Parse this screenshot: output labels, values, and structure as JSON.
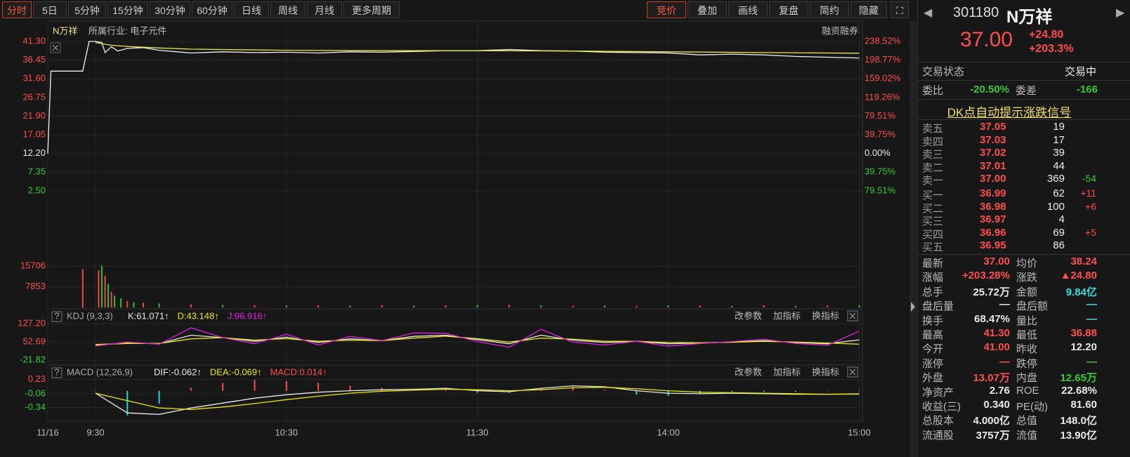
{
  "toolbar": {
    "periods": [
      "分时",
      "5日",
      "5分钟",
      "15分钟",
      "30分钟",
      "60分钟",
      "日线",
      "周线",
      "月线",
      "更多周期"
    ],
    "tools": [
      "竞价",
      "叠加",
      "画线",
      "复盘",
      "简约",
      "隐藏"
    ]
  },
  "chart": {
    "header": {
      "name": "N万祥",
      "industry": "所属行业: 电子元件",
      "margin": "融资融券"
    },
    "xlim": [
      -15,
      241
    ],
    "xticks": [
      {
        "value": -15,
        "label": "11/16"
      },
      {
        "value": 0,
        "label": "9:30"
      },
      {
        "value": 60,
        "label": "10:30"
      },
      {
        "value": 120,
        "label": "11:30"
      },
      {
        "value": 180,
        "label": "14:00"
      },
      {
        "value": 240,
        "label": "15:00"
      }
    ],
    "price": {
      "type": "line",
      "ylim": [
        -14.46,
        42.94
      ],
      "yticks": [
        {
          "value": 41.3,
          "label": "41.30"
        },
        36.45,
        {
          "value": 31.6,
          "label": "31.60"
        },
        26.75,
        {
          "value": 21.9,
          "label": "21.90"
        },
        17.05,
        {
          "value": 12.2,
          "label": "12.20"
        },
        7.35,
        {
          "value": 2.5,
          "label": "2.50"
        }
      ],
      "y2lim": [
        -218.52,
        251.97
      ],
      "y2ticks": [
        {
          "value": 238.52,
          "label": "238.52%"
        },
        {
          "value": 198.77,
          "label": "198.77%"
        },
        {
          "value": 159.02,
          "label": "159.02%"
        },
        {
          "value": 119.26,
          "label": "119.26%"
        },
        {
          "value": 79.51,
          "label": "79.51%"
        },
        {
          "value": 39.75,
          "label": "39.75%"
        },
        {
          "value": 0,
          "label": "0.00%"
        },
        {
          "value": -39.75,
          "label": "39.75%"
        },
        {
          "value": -79.51,
          "label": "79.51%"
        }
      ],
      "series": [
        {
          "color": "#f0f0f0",
          "x": [
            -15,
            -14,
            -4,
            -2,
            0,
            2,
            3,
            5,
            7,
            10,
            15,
            20,
            30,
            40,
            50,
            60,
            70,
            80,
            90,
            100,
            110,
            120,
            130,
            140,
            150,
            160,
            170,
            180,
            190,
            200,
            210,
            220,
            230,
            240
          ],
          "values": [
            12.2,
            33.6,
            33.6,
            41.3,
            41.3,
            41.0,
            38.4,
            39.9,
            38.8,
            39.5,
            39.7,
            39.0,
            38.3,
            38.6,
            38.4,
            38.5,
            38.3,
            38.6,
            38.5,
            38.7,
            38.9,
            38.9,
            39.2,
            38.9,
            38.8,
            38.5,
            38.4,
            38.3,
            37.8,
            38.0,
            37.8,
            37.4,
            37.2,
            37.0
          ]
        },
        {
          "color": "#e8e84a",
          "x": [
            0,
            5,
            10,
            20,
            30,
            60,
            90,
            120,
            150,
            180,
            210,
            240
          ],
          "values": [
            41.0,
            40.3,
            40.0,
            39.6,
            39.3,
            39.0,
            38.9,
            38.9,
            38.8,
            38.6,
            38.4,
            38.24
          ]
        }
      ]
    },
    "volume": {
      "type": "bar",
      "ylim": [
        0,
        18062
      ],
      "yticks": [
        15706,
        7853
      ],
      "x": [
        -4,
        1,
        2,
        3,
        4,
        5,
        6,
        8,
        10,
        12,
        15,
        20,
        30,
        40,
        50,
        60,
        70,
        80,
        90,
        100,
        110,
        120,
        130,
        140,
        150,
        160,
        170,
        180,
        190,
        200,
        210,
        220,
        230,
        240
      ],
      "values": [
        14500,
        14000,
        15706,
        12000,
        9000,
        6000,
        4500,
        3500,
        2500,
        2000,
        1800,
        1500,
        1200,
        1000,
        900,
        800,
        800,
        700,
        900,
        700,
        800,
        900,
        1000,
        800,
        700,
        700,
        600,
        800,
        700,
        600,
        800,
        600,
        700,
        900
      ],
      "colors": [
        "#ff4040",
        "#ff4040",
        "#30c030",
        "#ff4040",
        "#30c030",
        "#ff4040",
        "#30c030",
        "#30c030",
        "#ff4040",
        "#30c030",
        "#ff4040",
        "#30c030",
        "#ff4040",
        "#30c030",
        "#ff4040",
        "#30c030",
        "#ff4040",
        "#30c030",
        "#ff4040",
        "#30c030",
        "#ff4040",
        "#30c030",
        "#ff4040",
        "#30c030",
        "#ff4040",
        "#30c030",
        "#ff4040",
        "#30c030",
        "#ff4040",
        "#30c030",
        "#ff4040",
        "#30c030",
        "#ff4040",
        "#30c030"
      ]
    },
    "kdj": {
      "type": "line",
      "title": "KDJ (9,3,3)",
      "readouts": [
        "K:61.071↑",
        "D:43.148↑",
        "J:96.916↑"
      ],
      "buttons": [
        "改参数",
        "加指标",
        "换指标"
      ],
      "ylim": [
        -36.1,
        144.4
      ],
      "yticks": [
        {
          "value": 127.2,
          "label": "127.20"
        },
        52.69,
        -21.82
      ],
      "x": [
        0,
        10,
        20,
        30,
        40,
        50,
        60,
        70,
        80,
        90,
        100,
        110,
        120,
        130,
        140,
        150,
        160,
        170,
        180,
        190,
        200,
        210,
        220,
        230,
        240
      ],
      "series": [
        {
          "color": "#e8e8e8",
          "values": [
            40,
            48,
            45,
            80,
            70,
            55,
            72,
            50,
            65,
            58,
            75,
            80,
            62,
            45,
            80,
            60,
            50,
            55,
            45,
            48,
            52,
            58,
            50,
            45,
            61.07
          ]
        },
        {
          "color": "#e8e800",
          "values": [
            42,
            46,
            46,
            65,
            70,
            60,
            66,
            55,
            60,
            58,
            68,
            76,
            66,
            52,
            68,
            64,
            55,
            55,
            50,
            49,
            51,
            55,
            52,
            48,
            43.15
          ]
        },
        {
          "color": "#e020e0",
          "values": [
            36,
            52,
            43,
            110,
            70,
            45,
            84,
            40,
            75,
            58,
            89,
            88,
            54,
            31,
            104,
            52,
            40,
            55,
            35,
            46,
            54,
            64,
            46,
            39,
            96.92
          ]
        }
      ]
    },
    "macd": {
      "type": "line",
      "title": "MACD (12,26,9)",
      "readouts": [
        "DIF:-0.062↑",
        "DEA:-0.069↑",
        "MACD:0.014↑"
      ],
      "buttons": [
        "改参数",
        "加指标",
        "换指标"
      ],
      "ylim": [
        -0.59,
        0.48
      ],
      "yticks": [
        0.23,
        -0.06,
        -0.34
      ],
      "x": [
        0,
        10,
        20,
        30,
        40,
        50,
        60,
        70,
        80,
        90,
        100,
        110,
        120,
        130,
        140,
        150,
        160,
        170,
        180,
        190,
        200,
        210,
        220,
        230,
        240
      ],
      "series": [
        {
          "color": "#e8e8e8",
          "values": [
            -0.05,
            -0.45,
            -0.48,
            -0.35,
            -0.25,
            -0.15,
            -0.08,
            -0.03,
            0,
            0.02,
            0.03,
            0.05,
            0,
            -0.02,
            0.05,
            0.1,
            0.08,
            0,
            -0.05,
            -0.06,
            -0.05,
            -0.06,
            -0.07,
            -0.07,
            -0.062
          ]
        },
        {
          "color": "#e8e800",
          "values": [
            -0.05,
            -0.2,
            -0.35,
            -0.38,
            -0.33,
            -0.26,
            -0.18,
            -0.11,
            -0.05,
            -0.01,
            0.01,
            0.03,
            0.02,
            0,
            0.02,
            0.06,
            0.07,
            0.04,
            0,
            -0.03,
            -0.04,
            -0.05,
            -0.06,
            -0.07,
            -0.069
          ]
        }
      ],
      "bars": [
        0,
        -0.5,
        -0.26,
        0.06,
        0.16,
        0.22,
        0.2,
        0.16,
        0.1,
        0.06,
        0.04,
        0.04,
        -0.04,
        -0.04,
        0.06,
        0.08,
        0.02,
        -0.08,
        -0.1,
        -0.06,
        -0.02,
        -0.02,
        -0.02,
        0,
        0.014
      ]
    }
  },
  "quote": {
    "code": "301180",
    "name": "N万祥",
    "price": "37.00",
    "change": "+24.80",
    "pct": "+203.3%",
    "status_label": "交易状态",
    "status": "交易中",
    "ratio_label": "委比",
    "ratio": "-20.50%",
    "diff_label": "委差",
    "diff": "-166",
    "signal": "DK点自动提示涨跌信号",
    "asks": [
      [
        "卖五",
        "37.05",
        "19",
        ""
      ],
      [
        "卖四",
        "37.03",
        "17",
        ""
      ],
      [
        "卖三",
        "37.02",
        "39",
        ""
      ],
      [
        "卖二",
        "37.01",
        "44",
        ""
      ],
      [
        "卖一",
        "37.00",
        "369",
        "-54"
      ]
    ],
    "bids": [
      [
        "买一",
        "36.99",
        "62",
        "+11"
      ],
      [
        "买二",
        "36.98",
        "100",
        "+6"
      ],
      [
        "买三",
        "36.97",
        "4",
        ""
      ],
      [
        "买四",
        "36.96",
        "69",
        "+5"
      ],
      [
        "买五",
        "36.95",
        "86",
        ""
      ]
    ],
    "stats": [
      [
        {
          "label": "最新",
          "value": "37.00",
          "color": "#ff4d4d"
        },
        {
          "label": "均价",
          "value": "38.24",
          "color": "#ff4d4d"
        }
      ],
      [
        {
          "label": "涨幅",
          "value": "+203.28%",
          "color": "#ff4d4d"
        },
        {
          "label": "涨跌",
          "value": "▲24.80",
          "color": "#ff4d4d"
        }
      ],
      [
        {
          "label": "总手",
          "value": "25.72万",
          "color": "#e8e8e8"
        },
        {
          "label": "金额",
          "value": "9.84亿",
          "color": "#30e0e0"
        }
      ],
      [
        {
          "label": "盘后量",
          "value": "—",
          "color": "#e8e8e8"
        },
        {
          "label": "盘后额",
          "value": "—",
          "color": "#30e0e0"
        }
      ],
      [
        {
          "label": "换手",
          "value": "68.47%",
          "color": "#e8e8e8"
        },
        {
          "label": "量比",
          "value": "—",
          "color": "#30e0e0"
        }
      ],
      [
        {
          "label": "最高",
          "value": "41.30",
          "color": "#ff4d4d"
        },
        {
          "label": "最低",
          "value": "36.88",
          "color": "#ff4d4d"
        }
      ],
      [
        {
          "label": "今开",
          "value": "41.00",
          "color": "#ff4d4d"
        },
        {
          "label": "昨收",
          "value": "12.20",
          "color": "#e8e8e8"
        }
      ],
      [
        {
          "label": "涨停",
          "value": "—",
          "color": "#ff4d4d"
        },
        {
          "label": "跌停",
          "value": "—",
          "color": "#33cc33"
        }
      ],
      [
        {
          "label": "外盘",
          "value": "13.07万",
          "color": "#ff4d4d"
        },
        {
          "label": "内盘",
          "value": "12.65万",
          "color": "#33cc33"
        }
      ],
      [
        {
          "label": "净资产",
          "value": "2.76",
          "color": "#e8e8e8"
        },
        {
          "label": "ROE",
          "value": "22.68%",
          "color": "#e8e8e8"
        }
      ],
      [
        {
          "label": "收益(三)",
          "value": "0.340",
          "color": "#e8e8e8"
        },
        {
          "label": "PE(动)",
          "value": "81.60",
          "color": "#e8e8e8"
        }
      ],
      [
        {
          "label": "总股本",
          "value": "4.000亿",
          "color": "#e8e8e8"
        },
        {
          "label": "总值",
          "value": "148.0亿",
          "color": "#e8e8e8"
        }
      ],
      [
        {
          "label": "流通股",
          "value": "3757万",
          "color": "#e8e8e8"
        },
        {
          "label": "流值",
          "value": "13.90亿",
          "color": "#e8e8e8"
        }
      ]
    ]
  }
}
